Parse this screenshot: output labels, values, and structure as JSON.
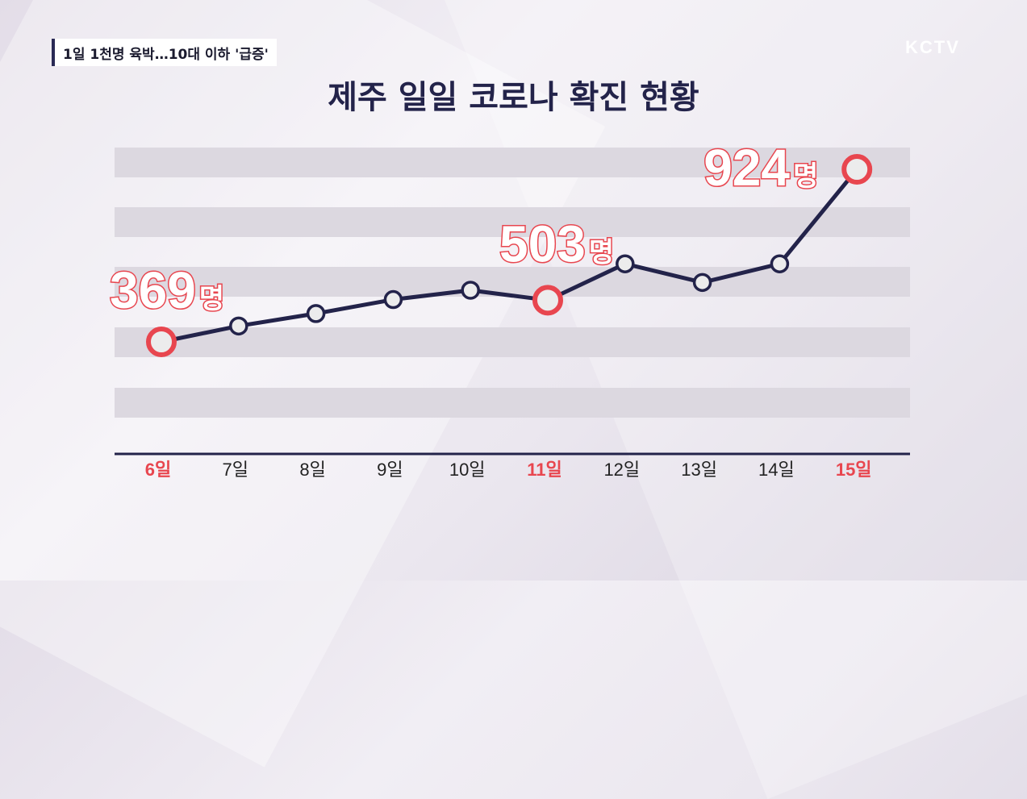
{
  "caption": "1일 1천명 육박…10대 이하 '급증'",
  "logo": "KCTV",
  "chart_data": {
    "type": "line",
    "title": "제주 일일 코로나 확진 현황",
    "categories": [
      "6일",
      "7일",
      "8일",
      "9일",
      "10일",
      "11일",
      "12일",
      "13일",
      "14일",
      "15일"
    ],
    "values": [
      369,
      420,
      460,
      505,
      535,
      503,
      620,
      560,
      620,
      924
    ],
    "highlight_indices": [
      0,
      5,
      9
    ],
    "highlight_labels": [
      {
        "index": 0,
        "number": "369",
        "unit": "명"
      },
      {
        "index": 5,
        "number": "503",
        "unit": "명"
      },
      {
        "index": 9,
        "number": "924",
        "unit": "명"
      }
    ],
    "colors": {
      "line": "#23234a",
      "highlight": "#e8464f",
      "band": "#dcd8e0",
      "marker_fill": "#ececec"
    },
    "grid": true
  }
}
